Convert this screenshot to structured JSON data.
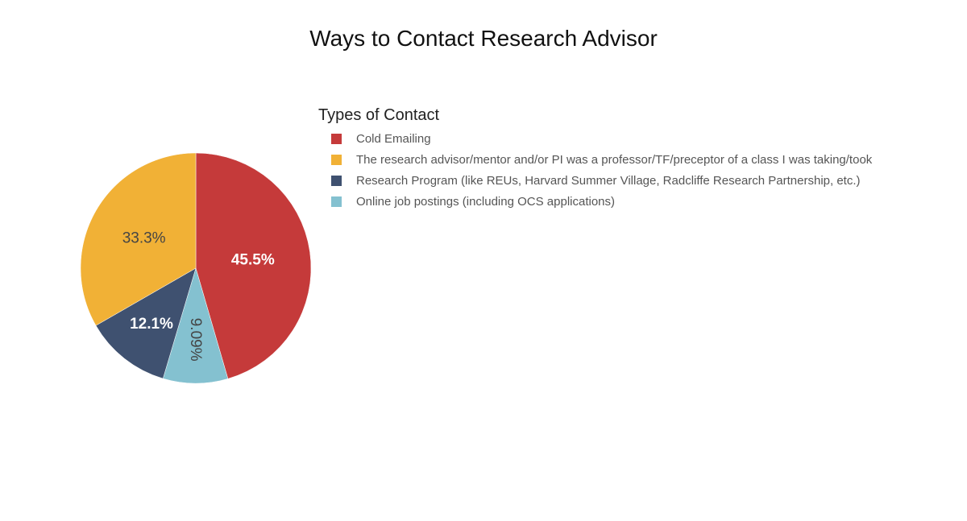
{
  "chart_data": {
    "type": "pie",
    "title": "Ways to Contact Research Advisor",
    "legend_title": "Types of Contact",
    "legend_position": "top-right",
    "series": [
      {
        "name": "Cold Emailing",
        "value": 45.5,
        "label": "45.5%",
        "color": "#C53A3A"
      },
      {
        "name": "Online job postings (including OCS applications)",
        "value": 9.09,
        "label": "9.09%",
        "color": "#84C1D0"
      },
      {
        "name": "Research Program (like REUs, Harvard Summer Village, Radcliffe Research Partnership, etc.)",
        "value": 12.1,
        "label": "12.1%",
        "color": "#3F5170"
      },
      {
        "name": "The research advisor/mentor and/or PI was a professor/TF/preceptor of a class I was taking/took",
        "value": 33.3,
        "label": "33.3%",
        "color": "#F1B136"
      }
    ],
    "legend_order": [
      0,
      3,
      2,
      1
    ]
  }
}
